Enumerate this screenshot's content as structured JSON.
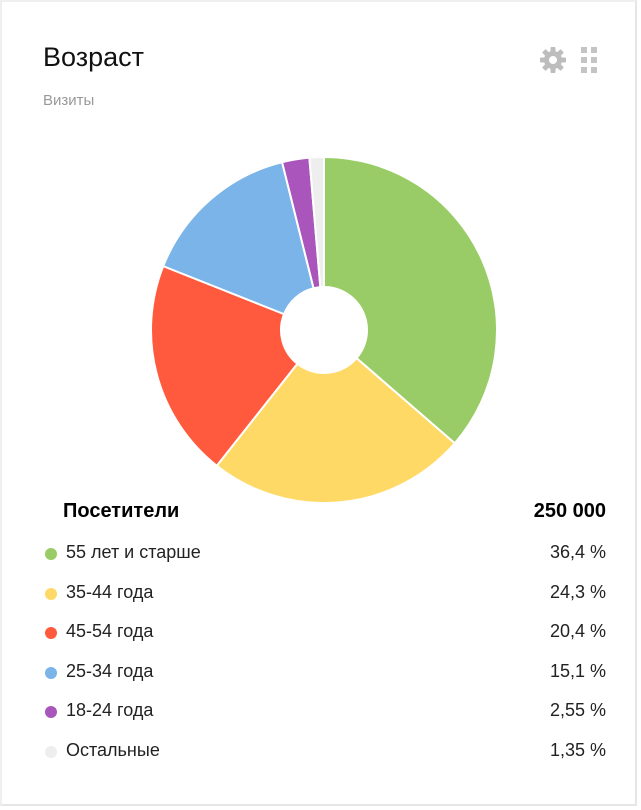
{
  "header": {
    "title": "Возраст",
    "subtitle": "Визиты"
  },
  "toolbar": {
    "icons": [
      "gear-icon",
      "drag-grid-icon"
    ]
  },
  "summary": {
    "label": "Посетители",
    "value": "250 000"
  },
  "chart_data": {
    "type": "pie",
    "subtype": "donut",
    "title": "Возраст",
    "subtitle": "Визиты",
    "total_label": "Посетители",
    "total_value": 250000,
    "slices": [
      {
        "label": "55 лет и старше",
        "value": 36.4,
        "display": "36,4 %",
        "color": "#99cc66"
      },
      {
        "label": "35-44 года",
        "value": 24.3,
        "display": "24,3 %",
        "color": "#ffd966"
      },
      {
        "label": "45-54 года",
        "value": 20.4,
        "display": "20,4 %",
        "color": "#ff5a3d"
      },
      {
        "label": "25-34 года",
        "value": 15.1,
        "display": "15,1 %",
        "color": "#7ab4e8"
      },
      {
        "label": "18-24 года",
        "value": 2.55,
        "display": "2,55 %",
        "color": "#aa55bb"
      },
      {
        "label": "Остальные",
        "value": 1.35,
        "display": "1,35 %",
        "color": "#eeeeee"
      }
    ],
    "legend": "bottom"
  }
}
